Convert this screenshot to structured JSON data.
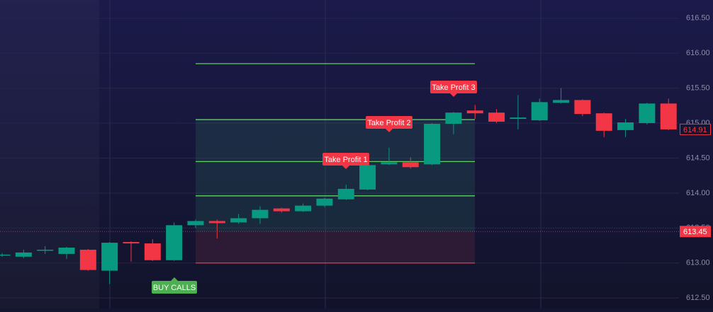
{
  "chart_data": {
    "type": "candlestick",
    "open": [
      613.11,
      613.09,
      613.18,
      613.13,
      613.19,
      612.89,
      613.3,
      613.28,
      613.04,
      613.54,
      613.6,
      613.58,
      613.64,
      613.78,
      613.74,
      613.82,
      613.91,
      614.05,
      614.41,
      614.44,
      614.41,
      614.99,
      615.18,
      615.15,
      615.06,
      615.04,
      615.29,
      615.33,
      615.14,
      614.9,
      615.0,
      615.28
    ],
    "high": [
      613.14,
      613.19,
      613.24,
      613.23,
      613.2,
      613.3,
      613.31,
      613.34,
      613.58,
      613.62,
      613.62,
      613.7,
      613.81,
      613.79,
      613.85,
      613.93,
      614.12,
      614.41,
      614.65,
      614.51,
      615.0,
      615.16,
      615.26,
      615.2,
      615.4,
      615.35,
      615.5,
      615.34,
      615.15,
      615.06,
      615.29,
      615.35
    ],
    "low": [
      613.09,
      613.07,
      613.13,
      613.06,
      612.89,
      612.7,
      613.02,
      613.03,
      613.03,
      613.5,
      613.35,
      613.56,
      613.56,
      613.72,
      613.73,
      613.8,
      613.9,
      614.04,
      614.4,
      614.35,
      614.4,
      614.84,
      615.06,
      615.0,
      614.91,
      615.03,
      615.28,
      615.1,
      614.8,
      614.8,
      614.98,
      614.9
    ],
    "close": [
      613.12,
      613.15,
      613.19,
      613.22,
      612.9,
      613.29,
      613.28,
      613.04,
      613.54,
      613.6,
      613.57,
      613.64,
      613.76,
      613.74,
      613.82,
      613.92,
      614.06,
      614.4,
      614.44,
      614.37,
      614.99,
      615.15,
      615.14,
      615.02,
      615.08,
      615.3,
      615.33,
      615.13,
      614.89,
      615.01,
      615.28,
      614.91
    ],
    "up_color": "#089981",
    "down_color": "#f23645",
    "ylim": [
      612.35,
      616.76
    ],
    "yticks": [
      {
        "value": 612.5,
        "label": "612.50"
      },
      {
        "value": 613,
        "label": "613.00"
      },
      {
        "value": 613.5,
        "label": "613.50"
      },
      {
        "value": 614,
        "label": "614.00"
      },
      {
        "value": 614.5,
        "label": "614.50"
      },
      {
        "value": 615,
        "label": "615.00"
      },
      {
        "value": 615.5,
        "label": "615.50"
      },
      {
        "value": 616,
        "label": "616.00"
      },
      {
        "value": 616.5,
        "label": "616.50"
      }
    ],
    "take_profit_levels": [
      613.96,
      614.45,
      615.05,
      615.85
    ],
    "entry": 613.45,
    "stop_loss": 613.0,
    "current_price": 613.45,
    "last_price": 614.91,
    "annotations": [
      "Take Profit 1",
      "Take Profit 2",
      "Take Profit 3",
      "BUY CALLS"
    ]
  }
}
